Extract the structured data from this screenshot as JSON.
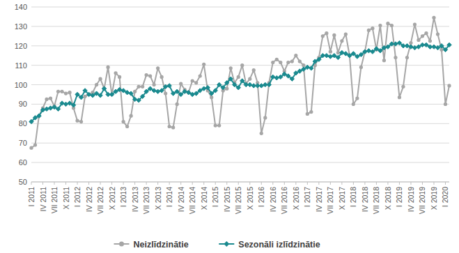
{
  "chart_data": {
    "type": "line",
    "categories": [
      "I 2011",
      null,
      null,
      "IV 2011",
      null,
      null,
      "VII 2011",
      null,
      null,
      "X 2011",
      null,
      null,
      "I 2012",
      null,
      null,
      "IV 2012",
      null,
      null,
      "VII 2012",
      null,
      null,
      "X 2012",
      null,
      null,
      "I 2013",
      null,
      null,
      "IV 2013",
      null,
      null,
      "VII 2013",
      null,
      null,
      "X 2013",
      null,
      null,
      "I 2014",
      null,
      null,
      "IV 2014",
      null,
      null,
      "VII 2014",
      null,
      null,
      "X 2014",
      null,
      null,
      "I 2015",
      null,
      null,
      "IV 2015",
      null,
      null,
      "VII 2015",
      null,
      null,
      "X 2015",
      null,
      null,
      "I 2016",
      null,
      null,
      "IV 2016",
      null,
      null,
      "VII 2016",
      null,
      null,
      "X 2016",
      null,
      null,
      "I 2017",
      null,
      null,
      "IV 2017",
      null,
      null,
      "VII 2017",
      null,
      null,
      "X 2017",
      null,
      null,
      "I 2018",
      null,
      null,
      "IV 2018",
      null,
      null,
      "VII 2018",
      null,
      null,
      "X 2018",
      null,
      null,
      "I 2019",
      null,
      null,
      "IV 2019",
      null,
      null,
      "VII 2019",
      null,
      null,
      "X 2019",
      null,
      null,
      "I 2020",
      null
    ],
    "series": [
      {
        "name": "Neizlīdzinātie",
        "color": "#a6a6a6",
        "marker": "circle",
        "values": [
          67.5,
          69,
          84,
          88,
          92.5,
          93,
          89,
          96.5,
          96.5,
          95.5,
          96,
          88,
          81.5,
          81,
          94,
          95,
          96,
          100,
          103,
          98,
          109,
          95,
          106,
          104,
          81,
          78.5,
          84,
          96.5,
          99,
          99,
          105,
          104.5,
          100,
          108.5,
          104,
          95.5,
          78.5,
          78,
          90,
          100.5,
          97.5,
          96,
          102,
          101,
          104.5,
          110.5,
          97,
          93.5,
          79,
          79,
          97,
          98,
          108.5,
          101,
          104,
          110,
          100.5,
          103,
          107.5,
          101,
          75,
          83,
          101,
          111.5,
          113,
          111.5,
          107,
          111.5,
          112,
          115,
          112,
          110,
          85,
          86,
          110,
          114,
          125,
          126.5,
          117,
          125.5,
          116.5,
          122.5,
          126,
          115,
          90,
          93,
          109,
          117,
          128,
          129,
          118,
          130.5,
          112.5,
          131.5,
          130.5,
          114,
          93.5,
          99,
          114,
          121.5,
          131,
          123,
          125,
          126.5,
          122.5,
          134.5,
          126,
          118,
          90,
          99.5
        ]
      },
      {
        "name": "Sezonāli izlīdzinātie",
        "color": "#1a8a8f",
        "marker": "diamond",
        "values": [
          81,
          83,
          84,
          87,
          87.5,
          88,
          88.5,
          87.5,
          90.5,
          90,
          90.5,
          89.5,
          95,
          93.5,
          97,
          95,
          94.5,
          95.5,
          94.5,
          98,
          95,
          95,
          96.5,
          97.5,
          97,
          96,
          95.5,
          92.5,
          92,
          94,
          96.5,
          98,
          97,
          96.5,
          97,
          99,
          99.5,
          95.5,
          96.5,
          95,
          96.5,
          96,
          95,
          95.5,
          97,
          98,
          98.5,
          95.5,
          97,
          100,
          98.5,
          101,
          103,
          100,
          98.5,
          102,
          100,
          100,
          99.5,
          99.5,
          99.5,
          100,
          100,
          104,
          103.5,
          104,
          105.5,
          104.5,
          103,
          106,
          107,
          108,
          109,
          108.5,
          112,
          113,
          115,
          115,
          114.5,
          115,
          114,
          116.5,
          116,
          115,
          116,
          114.5,
          115.5,
          117,
          117.5,
          117,
          118.5,
          117.5,
          119,
          119.5,
          121,
          121,
          121.5,
          120,
          120,
          119.5,
          119,
          119.5,
          120.5,
          120.5,
          119.5,
          119.5,
          119,
          120,
          118,
          120.5
        ]
      }
    ],
    "ylim": [
      50,
      140
    ],
    "yticks": [
      50,
      60,
      70,
      80,
      90,
      100,
      110,
      120,
      130,
      140
    ],
    "grid": true,
    "legend": "bottom"
  }
}
